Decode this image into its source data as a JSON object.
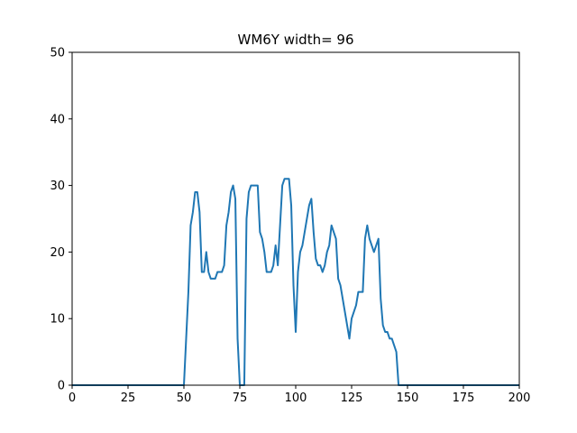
{
  "chart_data": {
    "type": "line",
    "title": "WM6Y width= 96",
    "xlabel": "",
    "ylabel": "",
    "xlim": [
      0,
      200
    ],
    "ylim": [
      0,
      50
    ],
    "xticks": [
      0,
      25,
      50,
      75,
      100,
      125,
      150,
      175,
      200
    ],
    "yticks": [
      0,
      10,
      20,
      30,
      40,
      50
    ],
    "grid": false,
    "series": [
      {
        "color": "#1f77b4",
        "x": [
          0,
          50,
          51,
          52,
          53,
          54,
          55,
          56,
          57,
          58,
          59,
          60,
          61,
          62,
          63,
          64,
          65,
          66,
          67,
          68,
          69,
          70,
          71,
          72,
          73,
          74,
          75,
          76,
          77,
          78,
          79,
          80,
          81,
          82,
          83,
          84,
          85,
          86,
          87,
          88,
          89,
          90,
          91,
          92,
          93,
          94,
          95,
          96,
          97,
          98,
          99,
          100,
          101,
          102,
          103,
          104,
          105,
          106,
          107,
          108,
          109,
          110,
          111,
          112,
          113,
          114,
          115,
          116,
          117,
          118,
          119,
          120,
          121,
          122,
          123,
          124,
          125,
          126,
          127,
          128,
          129,
          130,
          131,
          132,
          133,
          134,
          135,
          136,
          137,
          138,
          139,
          140,
          141,
          142,
          143,
          144,
          145,
          146,
          147,
          200
        ],
        "y": [
          0,
          0,
          7,
          14,
          24,
          26,
          29,
          29,
          26,
          17,
          17,
          20,
          17,
          16,
          16,
          16,
          17,
          17,
          17,
          18,
          24,
          26,
          29,
          30,
          28,
          7,
          0,
          0,
          0,
          25,
          29,
          30,
          30,
          30,
          30,
          23,
          22,
          20,
          17,
          17,
          17,
          18,
          21,
          18,
          24,
          30,
          31,
          31,
          31,
          27,
          15,
          8,
          17,
          20,
          21,
          23,
          25,
          27,
          28,
          23,
          19,
          18,
          18,
          17,
          18,
          20,
          21,
          24,
          23,
          22,
          16,
          15,
          13,
          11,
          9,
          7,
          10,
          11,
          12,
          14,
          14,
          14,
          22,
          24,
          22,
          21,
          20,
          21,
          22,
          13,
          9,
          8,
          8,
          7,
          7,
          6,
          5,
          0,
          0,
          0
        ]
      }
    ]
  }
}
